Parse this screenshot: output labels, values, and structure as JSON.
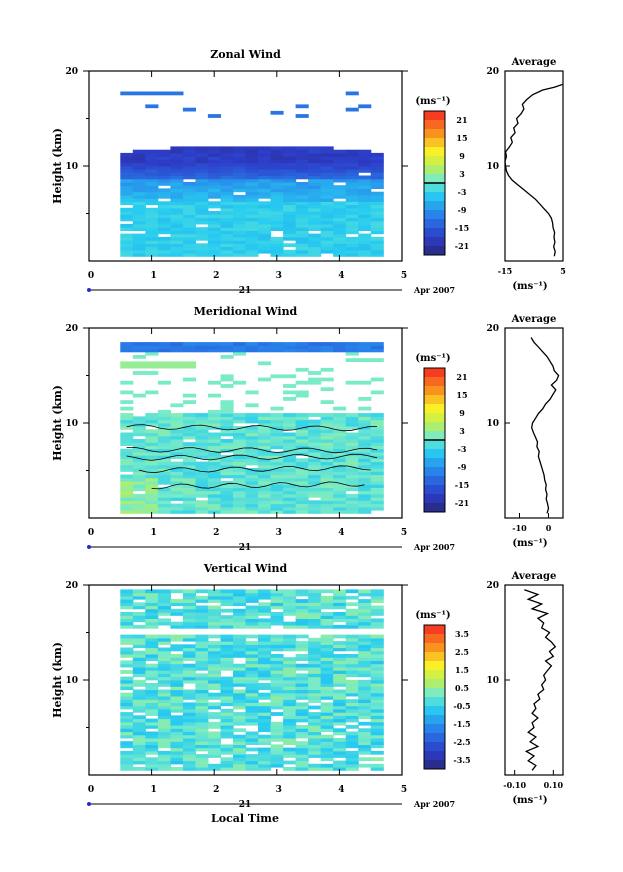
{
  "figure": {
    "date_label": "Apr 2007",
    "x_axis_label": "Local Time",
    "day_label": "21"
  },
  "chart_data": [
    {
      "type": "heatmap",
      "title": "Zonal Wind",
      "ylabel": "Height (km)",
      "xlim": [
        0,
        5
      ],
      "ylim": [
        0,
        20
      ],
      "xticks": [
        "0",
        "1",
        "2",
        "3",
        "4",
        "5"
      ],
      "yticks": [
        "20",
        "10"
      ],
      "colorbar": {
        "unit_label": "(ms⁻¹)",
        "range": [
          -24,
          24
        ],
        "tick_labels": [
          "21",
          "15",
          "9",
          "3",
          "-3",
          "-9",
          "-15",
          "-21"
        ],
        "zero_line": true
      },
      "average": {
        "title": "Average",
        "unit_label": "(ms⁻¹)",
        "xlim": [
          -15,
          5
        ],
        "xticks": [
          "-15",
          "5"
        ],
        "yticks": [
          "20",
          "10"
        ],
        "profile": [
          [
            0.5,
            2
          ],
          [
            1.0,
            2.3
          ],
          [
            1.5,
            1.8
          ],
          [
            2.0,
            2.2
          ],
          [
            2.5,
            1.9
          ],
          [
            3.0,
            2.1
          ],
          [
            3.5,
            1.6
          ],
          [
            4.0,
            1.4
          ],
          [
            4.5,
            1.0
          ],
          [
            5.0,
            0.0
          ],
          [
            5.5,
            -1.5
          ],
          [
            6.0,
            -3.0
          ],
          [
            6.5,
            -4.5
          ],
          [
            7.0,
            -6.5
          ],
          [
            7.5,
            -8.5
          ],
          [
            8.0,
            -10.5
          ],
          [
            8.5,
            -12.5
          ],
          [
            9.0,
            -13.8
          ],
          [
            9.5,
            -14.5
          ],
          [
            10.0,
            -14.8
          ],
          [
            10.5,
            -15.0
          ],
          [
            11.0,
            -14.5
          ],
          [
            11.5,
            -14.8
          ],
          [
            12.0,
            -13.5
          ],
          [
            12.5,
            -12.5
          ],
          [
            13.0,
            -13.0
          ],
          [
            13.5,
            -11.5
          ],
          [
            14.0,
            -12.0
          ],
          [
            14.5,
            -10.5
          ],
          [
            15.0,
            -11.0
          ],
          [
            15.5,
            -9.5
          ],
          [
            16.0,
            -8.5
          ],
          [
            16.5,
            -9.0
          ],
          [
            17.0,
            -7.5
          ],
          [
            17.5,
            -5.5
          ],
          [
            18.0,
            -2.0
          ],
          [
            18.3,
            2.0
          ],
          [
            18.6,
            5.0
          ]
        ]
      }
    },
    {
      "type": "heatmap",
      "title": "Meridional Wind",
      "ylabel": "Height (km)",
      "xlim": [
        0,
        5
      ],
      "ylim": [
        0,
        20
      ],
      "xticks": [
        "0",
        "1",
        "2",
        "3",
        "4",
        "5"
      ],
      "yticks": [
        "20",
        "10"
      ],
      "colorbar": {
        "unit_label": "(ms⁻¹)",
        "range": [
          -24,
          24
        ],
        "tick_labels": [
          "21",
          "15",
          "9",
          "3",
          "-3",
          "-9",
          "-15",
          "-21"
        ],
        "zero_line": true
      },
      "average": {
        "title": "Average",
        "unit_label": "(ms⁻¹)",
        "xlim": [
          -15,
          5
        ],
        "xticks": [
          "-10",
          "0"
        ],
        "yticks": [
          "20",
          "10"
        ],
        "profile": [
          [
            0.5,
            -0.5
          ],
          [
            1.0,
            0.0
          ],
          [
            1.5,
            -0.3
          ],
          [
            2.0,
            -0.8
          ],
          [
            2.5,
            -0.5
          ],
          [
            3.0,
            -1.0
          ],
          [
            3.5,
            -0.8
          ],
          [
            4.0,
            -1.3
          ],
          [
            4.5,
            -1.5
          ],
          [
            5.0,
            -2.0
          ],
          [
            5.5,
            -2.5
          ],
          [
            6.0,
            -3.0
          ],
          [
            6.5,
            -3.5
          ],
          [
            7.0,
            -3.2
          ],
          [
            7.5,
            -4.0
          ],
          [
            8.0,
            -3.8
          ],
          [
            8.5,
            -4.5
          ],
          [
            9.0,
            -5.2
          ],
          [
            9.5,
            -5.8
          ],
          [
            10.0,
            -5.5
          ],
          [
            10.5,
            -4.5
          ],
          [
            11.0,
            -3.5
          ],
          [
            11.5,
            -2.0
          ],
          [
            12.0,
            -1.0
          ],
          [
            12.5,
            0.5
          ],
          [
            13.0,
            1.5
          ],
          [
            13.5,
            2.5
          ],
          [
            14.0,
            1.0
          ],
          [
            14.5,
            2.8
          ],
          [
            15.0,
            3.5
          ],
          [
            15.5,
            2.0
          ],
          [
            16.0,
            1.5
          ],
          [
            16.5,
            0.5
          ],
          [
            17.0,
            -0.5
          ],
          [
            17.5,
            -2.0
          ],
          [
            18.0,
            -3.5
          ],
          [
            18.5,
            -5.0
          ],
          [
            19.0,
            -6.0
          ]
        ]
      }
    },
    {
      "type": "heatmap",
      "title": "Vertical Wind",
      "ylabel": "Height (km)",
      "xlabel": "Local Time",
      "xlim": [
        0,
        5
      ],
      "ylim": [
        0,
        20
      ],
      "xticks": [
        "0",
        "1",
        "2",
        "3",
        "4",
        "5"
      ],
      "yticks": [
        "20",
        "10"
      ],
      "colorbar": {
        "unit_label": "(ms⁻¹)",
        "range": [
          -4,
          4
        ],
        "tick_labels": [
          "3.5",
          "2.5",
          "1.5",
          "0.5",
          "-0.5",
          "-1.5",
          "-2.5",
          "-3.5"
        ],
        "zero_line": false
      },
      "average": {
        "title": "Average",
        "unit_label": "(ms⁻¹)",
        "xlim": [
          -0.15,
          0.15
        ],
        "xticks": [
          "-0.10",
          "0.10"
        ],
        "yticks": [
          "20",
          "10"
        ],
        "profile": [
          [
            0.5,
            -0.01
          ],
          [
            1.0,
            0.01
          ],
          [
            1.5,
            -0.03
          ],
          [
            2.0,
            0.0
          ],
          [
            2.5,
            -0.04
          ],
          [
            3.0,
            0.02
          ],
          [
            3.5,
            -0.02
          ],
          [
            4.0,
            0.01
          ],
          [
            4.5,
            -0.03
          ],
          [
            5.0,
            0.0
          ],
          [
            5.5,
            -0.01
          ],
          [
            6.0,
            0.02
          ],
          [
            6.5,
            -0.01
          ],
          [
            7.0,
            0.01
          ],
          [
            7.5,
            0.0
          ],
          [
            8.0,
            0.03
          ],
          [
            8.5,
            0.02
          ],
          [
            9.0,
            0.05
          ],
          [
            9.5,
            0.04
          ],
          [
            10.0,
            0.06
          ],
          [
            10.5,
            0.05
          ],
          [
            11.0,
            0.07
          ],
          [
            11.5,
            0.09
          ],
          [
            12.0,
            0.06
          ],
          [
            12.5,
            0.1
          ],
          [
            13.0,
            0.08
          ],
          [
            13.5,
            0.11
          ],
          [
            14.0,
            0.09
          ],
          [
            14.5,
            0.06
          ],
          [
            15.0,
            0.08
          ],
          [
            15.5,
            0.04
          ],
          [
            16.0,
            0.05
          ],
          [
            16.5,
            0.02
          ],
          [
            17.0,
            0.07
          ],
          [
            17.5,
            -0.01
          ],
          [
            18.0,
            0.04
          ],
          [
            18.5,
            -0.03
          ],
          [
            19.0,
            0.02
          ],
          [
            19.5,
            -0.05
          ]
        ]
      }
    }
  ]
}
